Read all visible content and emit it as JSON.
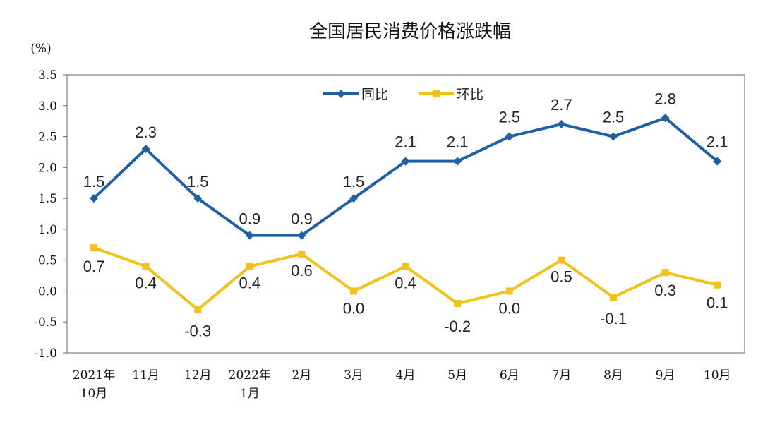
{
  "chart_data": {
    "type": "line",
    "title": "全国居民消费价格涨跌幅",
    "unit": "(%)",
    "categories": [
      [
        "2021年",
        "10月"
      ],
      [
        "11月"
      ],
      [
        "12月"
      ],
      [
        "2022年",
        "1月"
      ],
      [
        "2月"
      ],
      [
        "3月"
      ],
      [
        "4月"
      ],
      [
        "5月"
      ],
      [
        "6月"
      ],
      [
        "7月"
      ],
      [
        "8月"
      ],
      [
        "9月"
      ],
      [
        "10月"
      ]
    ],
    "series": [
      {
        "name": "同比",
        "color": "#1f5fa6",
        "values": [
          1.5,
          2.3,
          1.5,
          0.9,
          0.9,
          1.5,
          2.1,
          2.1,
          2.5,
          2.7,
          2.5,
          2.8,
          2.1
        ],
        "labels": [
          "1.5",
          "2.3",
          "1.5",
          "0.9",
          "0.9",
          "1.5",
          "2.1",
          "2.1",
          "2.5",
          "2.7",
          "2.5",
          "2.8",
          "2.1"
        ]
      },
      {
        "name": "环比",
        "color": "#f2c21b",
        "values": [
          0.7,
          0.4,
          -0.3,
          0.4,
          0.6,
          0.0,
          0.4,
          -0.2,
          0.0,
          0.5,
          -0.1,
          0.3,
          0.1
        ],
        "labels": [
          "0.7",
          "0.4",
          "-0.3",
          "0.4",
          "0.6",
          "0.0",
          "0.4",
          "-0.2",
          "0.0",
          "0.5",
          "-0.1",
          "0.3",
          "0.1"
        ]
      }
    ],
    "yticks": [
      "3.5",
      "3.0",
      "2.5",
      "2.0",
      "1.5",
      "1.0",
      "0.5",
      "0.0",
      "-0.5",
      "-1.0"
    ],
    "ylim": [
      -1.0,
      3.5
    ],
    "legend": "top-center",
    "grid": false
  }
}
